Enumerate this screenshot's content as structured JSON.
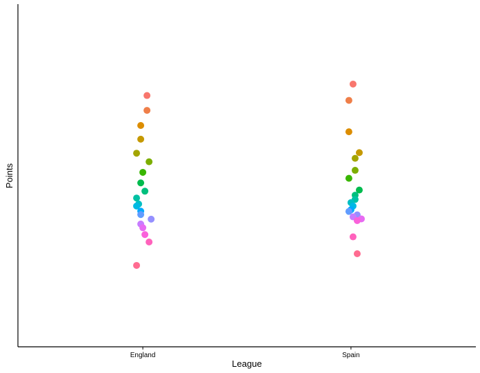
{
  "chart_data": {
    "type": "scatter",
    "title": "",
    "xlabel": "League",
    "ylabel": "Points",
    "categories": [
      "England",
      "Spain"
    ],
    "ylim": [
      0,
      120
    ],
    "grid": false,
    "legend": "none",
    "series": [
      {
        "category": "England",
        "color": "#F8766D",
        "y": 88,
        "jitter": 0.02
      },
      {
        "category": "England",
        "color": "#EF7F49",
        "y": 82.8,
        "jitter": 0.02
      },
      {
        "category": "England",
        "color": "#DC8D00",
        "y": 77.5,
        "jitter": -0.01
      },
      {
        "category": "England",
        "color": "#C59900",
        "y": 72.7,
        "jitter": -0.01
      },
      {
        "category": "England",
        "color": "#A3A500",
        "y": 67.8,
        "jitter": -0.03
      },
      {
        "category": "England",
        "color": "#7CAE00",
        "y": 64.8,
        "jitter": 0.03
      },
      {
        "category": "England",
        "color": "#39B600",
        "y": 61.1,
        "jitter": 0.0
      },
      {
        "category": "England",
        "color": "#00BB4E",
        "y": 57.4,
        "jitter": -0.01
      },
      {
        "category": "England",
        "color": "#00BF7D",
        "y": 54.5,
        "jitter": 0.01
      },
      {
        "category": "England",
        "color": "#00C1A3",
        "y": 52.1,
        "jitter": -0.03
      },
      {
        "category": "England",
        "color": "#00BFC4",
        "y": 50.0,
        "jitter": -0.02
      },
      {
        "category": "England",
        "color": "#00B9E3",
        "y": 49.3,
        "jitter": -0.03
      },
      {
        "category": "England",
        "color": "#00A9FF",
        "y": 47.5,
        "jitter": -0.01
      },
      {
        "category": "England",
        "color": "#619CFF",
        "y": 46.3,
        "jitter": -0.01
      },
      {
        "category": "England",
        "color": "#9590FF",
        "y": 44.7,
        "jitter": 0.04
      },
      {
        "category": "England",
        "color": "#C77CFF",
        "y": 43.0,
        "jitter": -0.01
      },
      {
        "category": "England",
        "color": "#E76BF3",
        "y": 41.7,
        "jitter": 0.0
      },
      {
        "category": "England",
        "color": "#FA62DB",
        "y": 39.3,
        "jitter": 0.01
      },
      {
        "category": "England",
        "color": "#FF62BC",
        "y": 36.7,
        "jitter": 0.03
      },
      {
        "category": "England",
        "color": "#FF6C91",
        "y": 28.5,
        "jitter": -0.03
      },
      {
        "category": "Spain",
        "color": "#F8766D",
        "y": 92.0,
        "jitter": 0.01
      },
      {
        "category": "Spain",
        "color": "#EF7F49",
        "y": 86.3,
        "jitter": -0.01
      },
      {
        "category": "Spain",
        "color": "#DC8D00",
        "y": 75.3,
        "jitter": -0.01
      },
      {
        "category": "Spain",
        "color": "#C59900",
        "y": 68.0,
        "jitter": 0.04
      },
      {
        "category": "Spain",
        "color": "#A3A500",
        "y": 66.0,
        "jitter": 0.02
      },
      {
        "category": "Spain",
        "color": "#7CAE00",
        "y": 61.8,
        "jitter": 0.02
      },
      {
        "category": "Spain",
        "color": "#39B600",
        "y": 59.0,
        "jitter": -0.01
      },
      {
        "category": "Spain",
        "color": "#00BB4E",
        "y": 54.9,
        "jitter": 0.04
      },
      {
        "category": "Spain",
        "color": "#00BF7D",
        "y": 53.1,
        "jitter": 0.02
      },
      {
        "category": "Spain",
        "color": "#00C1A3",
        "y": 51.6,
        "jitter": 0.02
      },
      {
        "category": "Spain",
        "color": "#00BFC4",
        "y": 50.5,
        "jitter": 0.0
      },
      {
        "category": "Spain",
        "color": "#00B9E3",
        "y": 49.3,
        "jitter": 0.01
      },
      {
        "category": "Spain",
        "color": "#00A9FF",
        "y": 48.0,
        "jitter": 0.0
      },
      {
        "category": "Spain",
        "color": "#619CFF",
        "y": 47.4,
        "jitter": -0.01
      },
      {
        "category": "Spain",
        "color": "#9590FF",
        "y": 46.2,
        "jitter": 0.03
      },
      {
        "category": "Spain",
        "color": "#C77CFF",
        "y": 45.5,
        "jitter": 0.01
      },
      {
        "category": "Spain",
        "color": "#E76BF3",
        "y": 44.8,
        "jitter": 0.05
      },
      {
        "category": "Spain",
        "color": "#FA62DB",
        "y": 44.2,
        "jitter": 0.03
      },
      {
        "category": "Spain",
        "color": "#FF62BC",
        "y": 38.5,
        "jitter": 0.01
      },
      {
        "category": "Spain",
        "color": "#FF6C91",
        "y": 32.6,
        "jitter": 0.03
      }
    ]
  }
}
